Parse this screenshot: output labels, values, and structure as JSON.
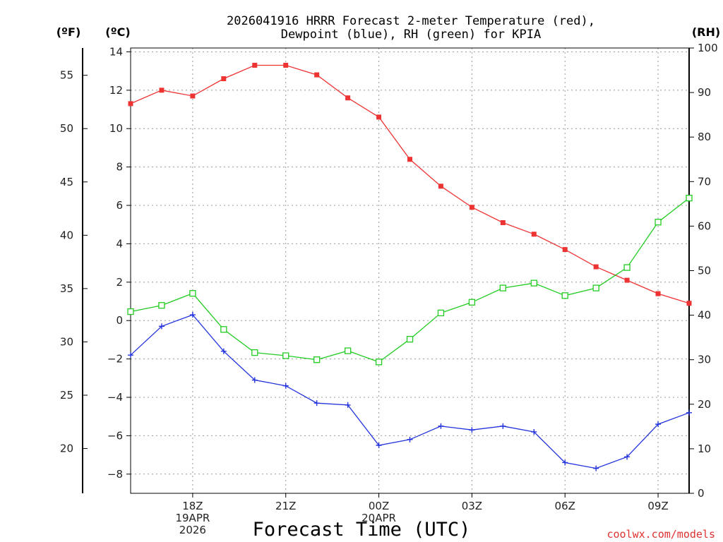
{
  "chart_data": {
    "type": "line",
    "title_lines": [
      "2026041916 HRRR Forecast 2-meter Temperature (red),",
      "Dewpoint (blue), RH (green) for KPIA"
    ],
    "unit_labels": {
      "fahrenheit": "(ºF)",
      "celsius": "(ºC)",
      "rh": "(RH)"
    },
    "xlabel": "Forecast Time (UTC)",
    "watermark": "coolwx.com/models",
    "x_hours": [
      16,
      17,
      18,
      19,
      20,
      21,
      22,
      23,
      24,
      25,
      26,
      27,
      28,
      29,
      30,
      31,
      32,
      33,
      34
    ],
    "xlim": [
      16,
      34
    ],
    "x_ticks": [
      {
        "hour": 18,
        "lines": [
          "18Z",
          "19APR",
          "2026"
        ]
      },
      {
        "hour": 21,
        "lines": [
          "21Z"
        ]
      },
      {
        "hour": 24,
        "lines": [
          "00Z",
          "20APR"
        ]
      },
      {
        "hour": 27,
        "lines": [
          "03Z"
        ]
      },
      {
        "hour": 30,
        "lines": [
          "06Z"
        ]
      },
      {
        "hour": 33,
        "lines": [
          "09Z"
        ]
      }
    ],
    "celsius_axis": {
      "min": -9,
      "max": 14.2,
      "ticks": [
        14,
        12,
        10,
        8,
        6,
        4,
        2,
        0,
        -2,
        -4,
        -6,
        -8
      ]
    },
    "fahrenheit_axis": {
      "ticks": [
        55,
        50,
        45,
        40,
        35,
        30,
        25,
        20
      ]
    },
    "rh_axis": {
      "min": 0,
      "max": 100,
      "ticks": [
        100,
        90,
        80,
        70,
        60,
        50,
        40,
        30,
        20,
        10,
        0
      ]
    },
    "series": [
      {
        "name": "2-meter Temperature",
        "axis": "celsius",
        "color": "#ee3333",
        "marker": "filled-square",
        "values": [
          11.3,
          12.0,
          11.7,
          12.6,
          13.3,
          13.3,
          12.8,
          11.6,
          10.6,
          8.4,
          7.0,
          5.9,
          5.1,
          4.5,
          3.7,
          2.8,
          2.1,
          1.4,
          0.9
        ]
      },
      {
        "name": "Dewpoint",
        "axis": "celsius",
        "color": "#2233dd",
        "marker": "plus",
        "values": [
          -1.8,
          -0.3,
          0.3,
          -1.6,
          -3.1,
          -3.4,
          -4.3,
          -4.4,
          -6.5,
          -6.2,
          -5.5,
          -5.7,
          -5.5,
          -5.8,
          -7.4,
          -7.7,
          -7.1,
          -5.4,
          -4.8
        ]
      },
      {
        "name": "RH",
        "axis": "rh",
        "color": "#22cc22",
        "marker": "open-square",
        "values": [
          40.8,
          42.2,
          44.9,
          36.8,
          31.6,
          30.9,
          30.0,
          32.0,
          29.5,
          34.6,
          40.5,
          42.9,
          46.1,
          47.2,
          44.4,
          46.1,
          50.7,
          60.9,
          66.3
        ]
      }
    ]
  }
}
